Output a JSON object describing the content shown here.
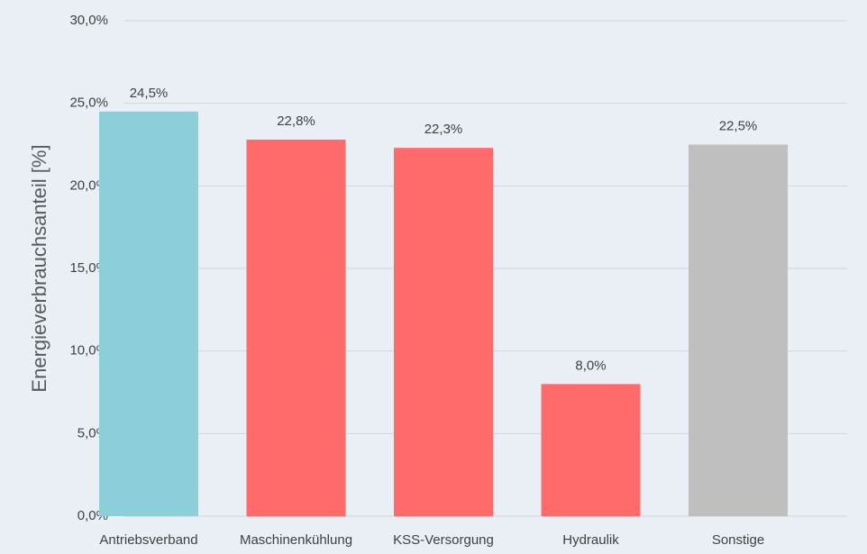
{
  "chart_data": {
    "type": "bar",
    "y_label": "Energieverbrauchsanteil [%]",
    "categories": [
      "Antriebsverband",
      "Maschinenkühlung",
      "KSS-Versorgung",
      "Hydraulik",
      "Sonstige"
    ],
    "values": [
      24.5,
      22.8,
      22.3,
      8.0,
      22.5
    ],
    "value_labels": [
      "24,5%",
      "22,8%",
      "22,3%",
      "8,0%",
      "22,5%"
    ],
    "colors": [
      "#8ccfd9",
      "#ff6b6b",
      "#ff6b6b",
      "#ff6b6b",
      "#bfbfbf"
    ],
    "ylim": [
      0,
      30
    ],
    "yticks": [
      {
        "value": 0,
        "label": "0,0%"
      },
      {
        "value": 5,
        "label": "5,0%"
      },
      {
        "value": 10,
        "label": "10,0%"
      },
      {
        "value": 15,
        "label": "15,0%"
      },
      {
        "value": 20,
        "label": "20,0%"
      },
      {
        "value": 25,
        "label": "25,0%"
      },
      {
        "value": 30,
        "label": "30,0%"
      }
    ],
    "grid": true
  }
}
